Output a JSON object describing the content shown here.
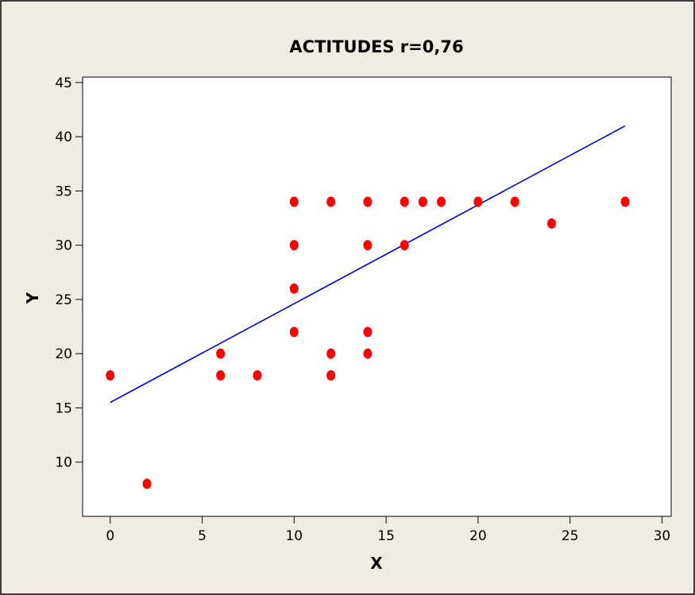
{
  "chart_data": {
    "type": "scatter",
    "title": "ACTITUDES r=0,76",
    "xlabel": "X",
    "ylabel": "Y",
    "xlim": [
      -1.5,
      30.5
    ],
    "ylim": [
      5,
      45.5
    ],
    "xticks": [
      0,
      5,
      10,
      15,
      20,
      25,
      30
    ],
    "yticks": [
      10,
      15,
      20,
      25,
      30,
      35,
      40,
      45
    ],
    "grid": false,
    "background_color": "#f0ece4",
    "plot_area_color": "#ffffff",
    "marker_color": "#ff0000",
    "line_color": "#0000cc",
    "series": [
      {
        "points": [
          {
            "x": 0,
            "y": 18
          },
          {
            "x": 2,
            "y": 8
          },
          {
            "x": 6,
            "y": 20
          },
          {
            "x": 6,
            "y": 18
          },
          {
            "x": 8,
            "y": 18
          },
          {
            "x": 10,
            "y": 34
          },
          {
            "x": 10,
            "y": 30
          },
          {
            "x": 10,
            "y": 26
          },
          {
            "x": 10,
            "y": 22
          },
          {
            "x": 12,
            "y": 34
          },
          {
            "x": 12,
            "y": 20
          },
          {
            "x": 12,
            "y": 18
          },
          {
            "x": 14,
            "y": 34
          },
          {
            "x": 14,
            "y": 30
          },
          {
            "x": 14,
            "y": 22
          },
          {
            "x": 14,
            "y": 20
          },
          {
            "x": 16,
            "y": 34
          },
          {
            "x": 16,
            "y": 30
          },
          {
            "x": 17,
            "y": 34
          },
          {
            "x": 18,
            "y": 34
          },
          {
            "x": 20,
            "y": 34
          },
          {
            "x": 22,
            "y": 34
          },
          {
            "x": 24,
            "y": 32
          },
          {
            "x": 28,
            "y": 34
          }
        ]
      }
    ],
    "fit_line": {
      "x": [
        0,
        28
      ],
      "y": [
        15.5,
        41
      ]
    }
  }
}
